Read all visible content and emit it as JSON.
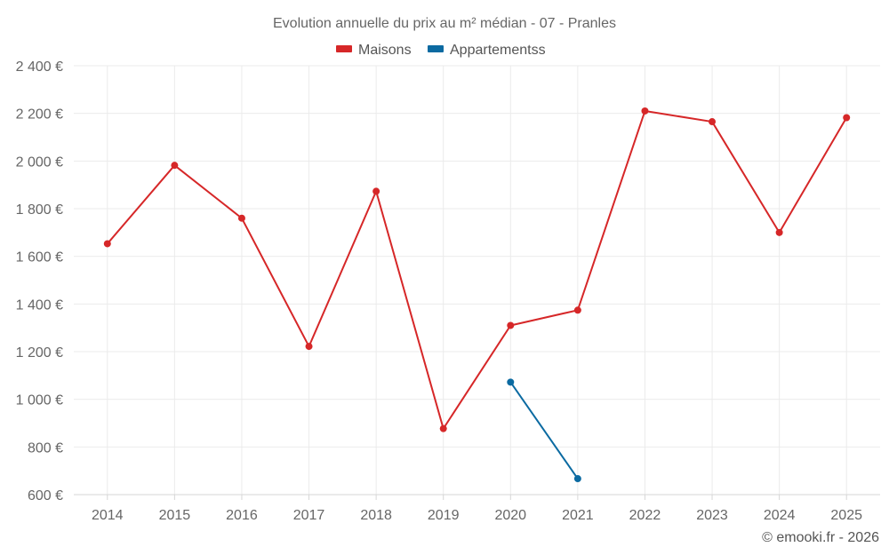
{
  "chart_data": {
    "type": "line",
    "title": "Evolution annuelle du prix au m² médian - 07 - Pranles",
    "categories": [
      "2014",
      "2015",
      "2016",
      "2017",
      "2018",
      "2019",
      "2020",
      "2021",
      "2022",
      "2023",
      "2024",
      "2025"
    ],
    "series": [
      {
        "name": "Maisons",
        "color": "#d62728",
        "values": [
          1653,
          1982,
          1760,
          1222,
          1873,
          877,
          1310,
          1374,
          2210,
          2165,
          1700,
          2182
        ]
      },
      {
        "name": "Appartementss",
        "color": "#0b6aa1",
        "values": [
          null,
          null,
          null,
          null,
          null,
          null,
          1072,
          667,
          null,
          null,
          null,
          null
        ]
      }
    ],
    "ylim": [
      600,
      2400
    ],
    "yticks": [
      600,
      800,
      1000,
      1200,
      1400,
      1600,
      1800,
      2000,
      2200,
      2400
    ],
    "ytick_labels": [
      "600 €",
      "800 €",
      "1 000 €",
      "1 200 €",
      "1 400 €",
      "1 600 €",
      "1 800 €",
      "2 000 €",
      "2 200 €",
      "2 400 €"
    ],
    "grid": true,
    "legend_position": "top-center",
    "credit": "© emooki.fr - 2026"
  }
}
